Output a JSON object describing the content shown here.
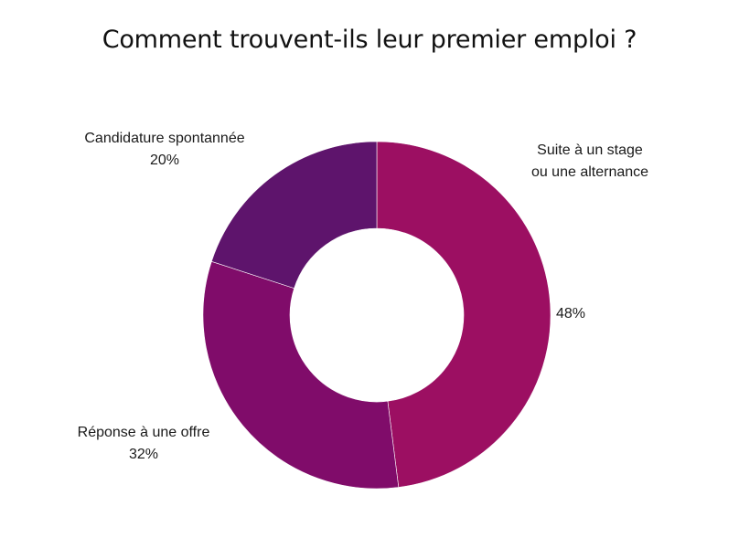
{
  "chart_data": {
    "type": "pie",
    "donut": true,
    "title": "Comment trouvent-ils leur premier emploi ?",
    "start_angle_deg": 0,
    "direction": "clockwise",
    "slices": [
      {
        "label_lines": [
          "Suite à un stage",
          "ou une alternance"
        ],
        "value": 48,
        "value_label": "48%",
        "color": "#9c0f62"
      },
      {
        "label_lines": [
          "Réponse à une offre"
        ],
        "value": 32,
        "value_label": "32%",
        "color": "#800c6a"
      },
      {
        "label_lines": [
          "Candidature spontannée"
        ],
        "value": 20,
        "value_label": "20%",
        "color": "#5e146c"
      }
    ]
  }
}
